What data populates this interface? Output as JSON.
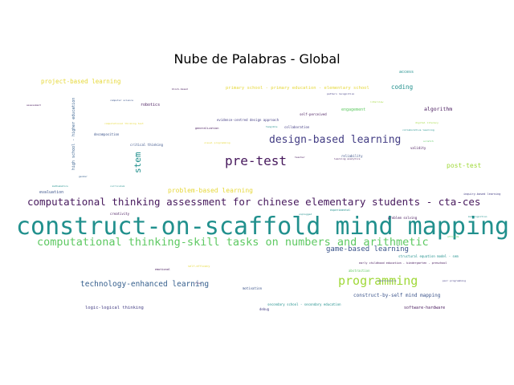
{
  "title": "Nube de Palabras - Global",
  "colors": {
    "purple": "#46185c",
    "indigo": "#433d84",
    "blue": "#3b538a",
    "teal": "#21908d",
    "green": "#5ec962",
    "lime": "#9fd837",
    "yellow": "#e6d83a",
    "slate": "#355f8d"
  },
  "words": [
    {
      "text": "construct-on-scaffold mind mapping",
      "color": "teal"
    },
    {
      "text": "computational thinking-skill tasks on numbers and arithmetic",
      "color": "green"
    },
    {
      "text": "computational thinking assessment for chinese elementary students - cta-ces",
      "color": "purple"
    },
    {
      "text": "design-based learning",
      "color": "indigo"
    },
    {
      "text": "pre-test",
      "color": "purple"
    },
    {
      "text": "programming",
      "color": "lime"
    },
    {
      "text": "stem",
      "color": "teal"
    },
    {
      "text": "technology-enhanced learning",
      "color": "slate"
    },
    {
      "text": "game-based learning",
      "color": "blue"
    },
    {
      "text": "problem-based learning",
      "color": "yellow"
    },
    {
      "text": "project-based learning",
      "color": "yellow"
    },
    {
      "text": "post-test",
      "color": "lime"
    },
    {
      "text": "coding",
      "color": "teal"
    },
    {
      "text": "algorithm",
      "color": "purple"
    },
    {
      "text": "construct-by-self mind mapping",
      "color": "blue"
    },
    {
      "text": "primary school - primary education - elementary school",
      "color": "yellow"
    },
    {
      "text": "logic-logical thinking",
      "color": "indigo"
    },
    {
      "text": "software-hardware",
      "color": "purple"
    },
    {
      "text": "high school - higher education",
      "color": "slate"
    },
    {
      "text": "robotics",
      "color": "purple"
    },
    {
      "text": "evaluation",
      "color": "blue"
    },
    {
      "text": "engagement",
      "color": "green"
    },
    {
      "text": "access",
      "color": "teal"
    },
    {
      "text": "evidence-centred design approach",
      "color": "indigo"
    },
    {
      "text": "creativity",
      "color": "purple"
    },
    {
      "text": "motivation",
      "color": "blue"
    },
    {
      "text": "secondary school - secondary education",
      "color": "teal"
    },
    {
      "text": "debug",
      "color": "indigo"
    },
    {
      "text": "abstraction",
      "color": "green"
    },
    {
      "text": "structural equation model - sem",
      "color": "teal"
    },
    {
      "text": "early childhood education - kindergarten - preschool",
      "color": "purple"
    },
    {
      "text": "problem solving",
      "color": "purple"
    },
    {
      "text": "reliability",
      "color": "blue"
    },
    {
      "text": "validity",
      "color": "purple"
    },
    {
      "text": "collaboration",
      "color": "indigo"
    },
    {
      "text": "self-perceived",
      "color": "purple"
    },
    {
      "text": "critical thinking",
      "color": "blue"
    },
    {
      "text": "decomposition",
      "color": "blue"
    },
    {
      "text": "generalization",
      "color": "purple"
    },
    {
      "text": "inquiry-based learning",
      "color": "indigo"
    },
    {
      "text": "experimental",
      "color": "teal"
    },
    {
      "text": "emotional",
      "color": "purple"
    },
    {
      "text": "self-efficacy",
      "color": "yellow"
    },
    {
      "text": "collaborative learning",
      "color": "teal"
    },
    {
      "text": "computational thinking test",
      "color": "yellow"
    },
    {
      "text": "digital literacy",
      "color": "lime"
    },
    {
      "text": "pair programming",
      "color": "indigo"
    },
    {
      "text": "questionnaire",
      "color": "blue"
    },
    {
      "text": "computer science",
      "color": "blue"
    },
    {
      "text": "scratch",
      "color": "green"
    },
    {
      "text": "assessment",
      "color": "purple"
    },
    {
      "text": "mathematics",
      "color": "teal"
    },
    {
      "text": "gender",
      "color": "slate"
    },
    {
      "text": "attitude",
      "color": "green"
    },
    {
      "text": "interview",
      "color": "lime"
    },
    {
      "text": "tangible",
      "color": "teal"
    },
    {
      "text": "unplugged",
      "color": "teal"
    },
    {
      "text": "metacognition",
      "color": "teal"
    },
    {
      "text": "curriculum",
      "color": "teal"
    },
    {
      "text": "block-based",
      "color": "purple"
    },
    {
      "text": "learning analytics",
      "color": "purple"
    },
    {
      "text": "teacher",
      "color": "purple"
    },
    {
      "text": "visual programming",
      "color": "yellow"
    },
    {
      "text": "flow",
      "color": "purple"
    },
    {
      "text": "pattern recognition",
      "color": "indigo"
    }
  ]
}
